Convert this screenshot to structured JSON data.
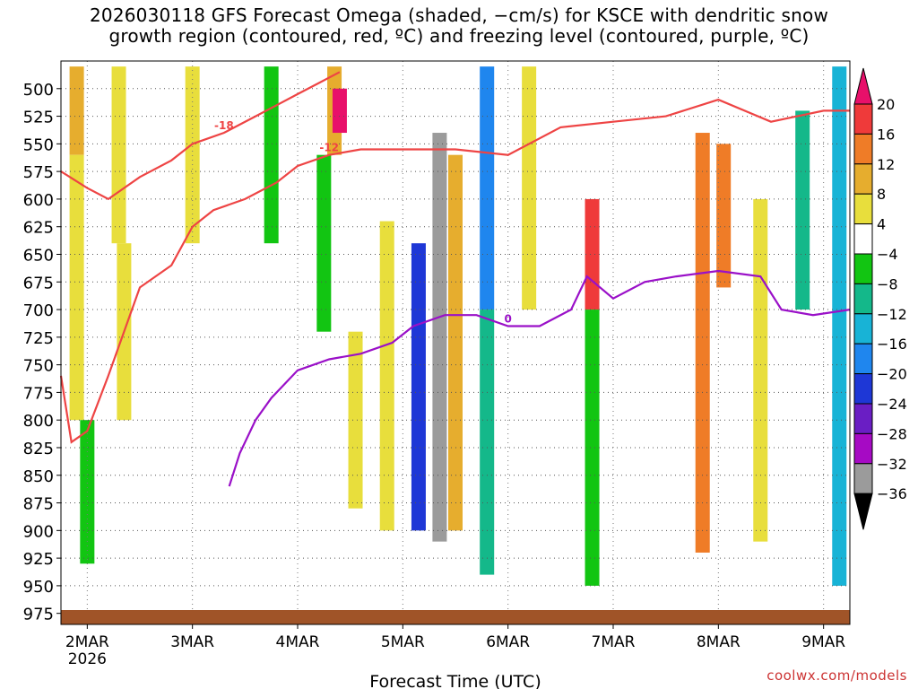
{
  "title_lines": [
    "2026030118 GFS Forecast Omega (shaded, −cm/s) for KSCE with dendritic snow",
    "growth region (contoured, red, ºC) and freezing level (contoured, purple, ºC)"
  ],
  "credit": "coolwx.com/models",
  "chart_data": {
    "type": "heatmap",
    "xlabel": "Forecast Time (UTC)",
    "ylabel": "",
    "x_ticks": [
      "2MAR",
      "3MAR",
      "4MAR",
      "5MAR",
      "6MAR",
      "7MAR",
      "8MAR",
      "9MAR"
    ],
    "x_tick_days": [
      2,
      3,
      4,
      5,
      6,
      7,
      8,
      9
    ],
    "x_first_tick_sublabel": "2026",
    "xlim_days": [
      1.75,
      9.25
    ],
    "y_ticks": [
      500,
      525,
      550,
      575,
      600,
      625,
      650,
      675,
      700,
      725,
      750,
      775,
      800,
      825,
      850,
      875,
      900,
      925,
      950,
      975
    ],
    "ylim_hpa": [
      475,
      985
    ],
    "grid": true,
    "colorbar_labels": [
      "20",
      "16",
      "12",
      "8",
      "4",
      "−4",
      "−8",
      "−12",
      "−16",
      "−20",
      "−24",
      "−28",
      "−32",
      "−36"
    ],
    "colorbar_colors": [
      "#e8106a",
      "#ef3a3a",
      "#ef7c27",
      "#e6ad2e",
      "#e8de3c",
      "#ffffff",
      "#12c512",
      "#14b88a",
      "#18b3d6",
      "#1f86ee",
      "#1e37d6",
      "#6a1ec4",
      "#a60ac4",
      "#9b9b9b",
      "#000000"
    ],
    "omega_cells": [
      {
        "day": 1.9,
        "p0": 480,
        "p1": 560,
        "value": 10
      },
      {
        "day": 1.9,
        "p0": 560,
        "p1": 800,
        "value": 5
      },
      {
        "day": 2.3,
        "p0": 480,
        "p1": 640,
        "value": 5
      },
      {
        "day": 2.35,
        "p0": 640,
        "p1": 800,
        "value": 4.5
      },
      {
        "day": 2.0,
        "p0": 800,
        "p1": 930,
        "value": -6
      },
      {
        "day": 3.0,
        "p0": 480,
        "p1": 640,
        "value": 5
      },
      {
        "day": 3.75,
        "p0": 480,
        "p1": 640,
        "value": -6
      },
      {
        "day": 4.35,
        "p0": 480,
        "p1": 560,
        "value": 10
      },
      {
        "day": 4.4,
        "p0": 500,
        "p1": 540,
        "value": 20
      },
      {
        "day": 4.25,
        "p0": 560,
        "p1": 720,
        "value": -6
      },
      {
        "day": 4.55,
        "p0": 720,
        "p1": 880,
        "value": 5
      },
      {
        "day": 4.85,
        "p0": 620,
        "p1": 900,
        "value": 5
      },
      {
        "day": 5.15,
        "p0": 640,
        "p1": 900,
        "value": -20
      },
      {
        "day": 5.35,
        "p0": 540,
        "p1": 910,
        "value": -32
      },
      {
        "day": 5.5,
        "p0": 560,
        "p1": 900,
        "value": 8
      },
      {
        "day": 5.8,
        "p0": 480,
        "p1": 700,
        "value": -16
      },
      {
        "day": 5.8,
        "p0": 700,
        "p1": 940,
        "value": -10
      },
      {
        "day": 6.2,
        "p0": 480,
        "p1": 700,
        "value": 6
      },
      {
        "day": 6.8,
        "p0": 600,
        "p1": 700,
        "value": 18
      },
      {
        "day": 6.8,
        "p0": 700,
        "p1": 950,
        "value": -6
      },
      {
        "day": 7.85,
        "p0": 540,
        "p1": 920,
        "value": 12
      },
      {
        "day": 8.05,
        "p0": 550,
        "p1": 680,
        "value": 14
      },
      {
        "day": 8.4,
        "p0": 600,
        "p1": 910,
        "value": 5
      },
      {
        "day": 8.8,
        "p0": 520,
        "p1": 700,
        "value": -8
      },
      {
        "day": 9.15,
        "p0": 480,
        "p1": 950,
        "value": -12
      }
    ],
    "contours": [
      {
        "label": "-18",
        "color": "#ee4444",
        "days": [
          1.75,
          2.0,
          2.2,
          2.5,
          2.8,
          3.0,
          3.3,
          3.6,
          3.8,
          4.0,
          4.2,
          4.4
        ],
        "p": [
          575,
          590,
          600,
          580,
          565,
          550,
          540,
          525,
          515,
          505,
          495,
          485
        ]
      },
      {
        "label": "-12",
        "color": "#ee4444",
        "days": [
          1.75,
          1.85,
          2.0,
          2.2,
          2.5,
          2.8,
          3.0,
          3.2,
          3.5,
          3.8,
          4.0,
          4.3,
          4.6,
          5.0,
          5.5,
          6.0,
          6.5,
          7.0,
          7.5,
          8.0,
          8.5,
          9.0,
          9.25
        ],
        "p": [
          760,
          820,
          810,
          760,
          680,
          660,
          625,
          610,
          600,
          585,
          570,
          560,
          555,
          555,
          555,
          560,
          535,
          530,
          525,
          510,
          530,
          520,
          520
        ]
      },
      {
        "label": "0",
        "color": "#9a10c8",
        "days": [
          3.35,
          3.45,
          3.6,
          3.75,
          4.0,
          4.3,
          4.6,
          4.9,
          5.1,
          5.4,
          5.7,
          6.0,
          6.3,
          6.6,
          6.75,
          7.0,
          7.3,
          7.6,
          8.0,
          8.4,
          8.6,
          8.9,
          9.25
        ],
        "p": [
          860,
          830,
          800,
          780,
          755,
          745,
          740,
          730,
          715,
          705,
          705,
          715,
          715,
          700,
          670,
          690,
          675,
          670,
          665,
          670,
          700,
          705,
          700
        ]
      }
    ]
  }
}
